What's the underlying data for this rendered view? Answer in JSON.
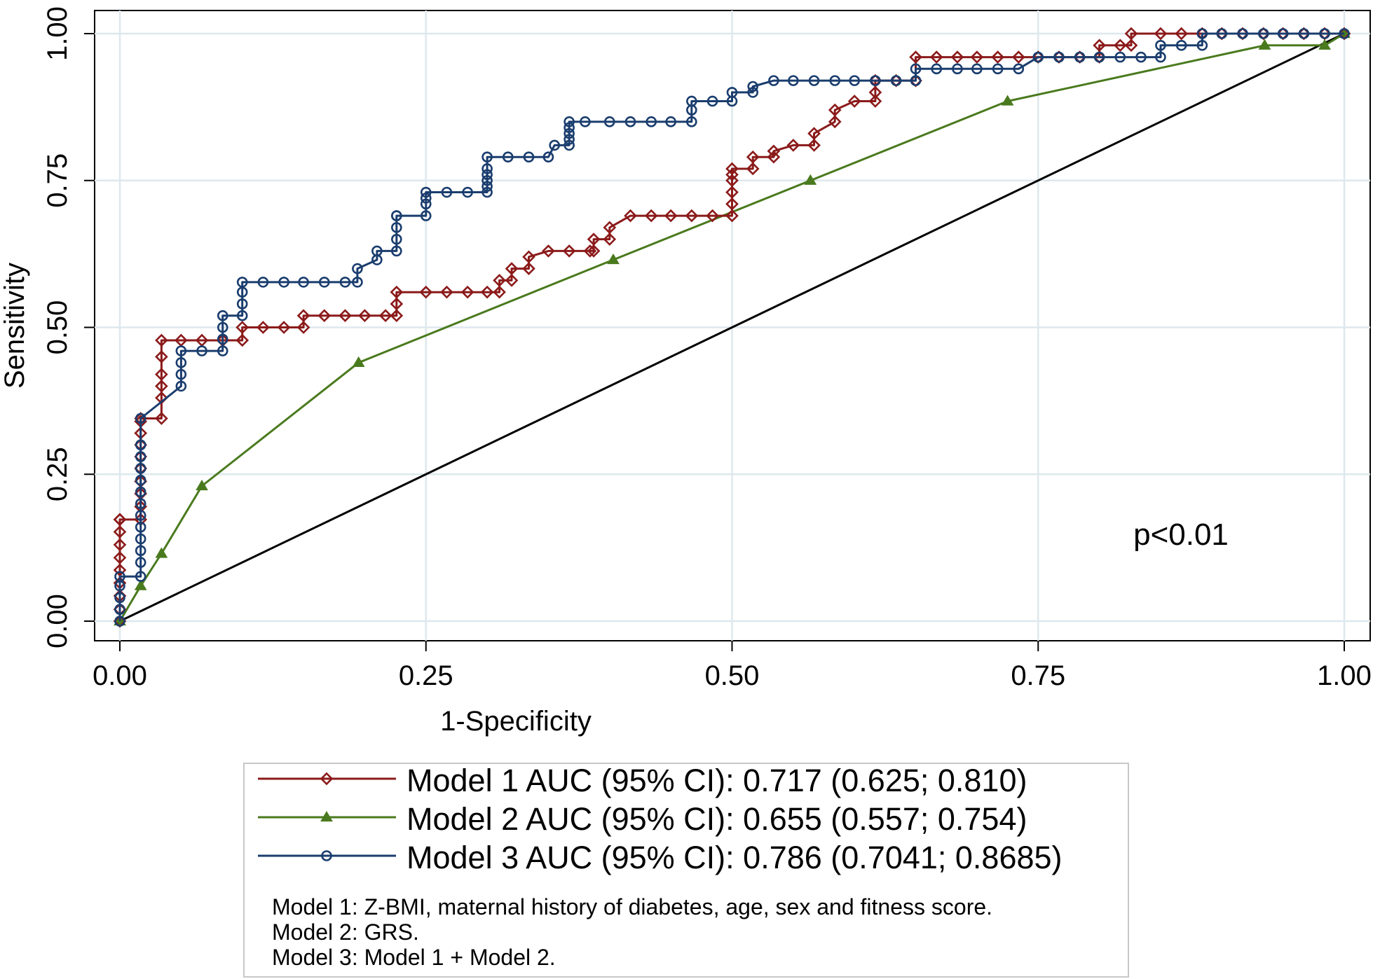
{
  "chart_data": {
    "type": "line",
    "xlabel": "1-Specificity",
    "ylabel": "Sensitivity",
    "xlim": [
      0,
      1
    ],
    "ylim": [
      0,
      1
    ],
    "xticks": [
      "0.00",
      "0.25",
      "0.50",
      "0.75",
      "1.00"
    ],
    "yticks": [
      "0.00",
      "0.25",
      "0.50",
      "0.75",
      "1.00"
    ],
    "grid": true,
    "annotation": "p<0.01",
    "colors": {
      "model1": "#8b1a1a",
      "model2": "#4a7a1e",
      "model3": "#1a3d6e",
      "reference": "#000000",
      "grid": "#dde8ee"
    },
    "series": [
      {
        "name": "Model 1 AUC (95% CI): 0.717 (0.625; 0.810)",
        "marker": "diamond",
        "x": [
          0,
          0,
          0,
          0,
          0,
          0,
          0,
          0,
          0,
          0,
          0.017,
          0.017,
          0.017,
          0.017,
          0.017,
          0.017,
          0.017,
          0.017,
          0.017,
          0.017,
          0.034,
          0.034,
          0.034,
          0.034,
          0.034,
          0.034,
          0.05,
          0.067,
          0.084,
          0.1,
          0.1,
          0.117,
          0.134,
          0.15,
          0.15,
          0.167,
          0.184,
          0.2,
          0.217,
          0.226,
          0.226,
          0.226,
          0.25,
          0.267,
          0.284,
          0.3,
          0.31,
          0.31,
          0.32,
          0.32,
          0.334,
          0.334,
          0.35,
          0.367,
          0.384,
          0.387,
          0.387,
          0.4,
          0.4,
          0.417,
          0.434,
          0.45,
          0.467,
          0.484,
          0.5,
          0.5,
          0.5,
          0.5,
          0.5,
          0.5,
          0.517,
          0.517,
          0.534,
          0.534,
          0.55,
          0.567,
          0.567,
          0.584,
          0.584,
          0.6,
          0.617,
          0.617,
          0.617,
          0.634,
          0.65,
          0.65,
          0.667,
          0.684,
          0.7,
          0.717,
          0.734,
          0.75,
          0.767,
          0.784,
          0.8,
          0.8,
          0.817,
          0.826,
          0.826,
          0.85,
          0.867,
          0.884,
          0.9,
          0.917,
          0.934,
          0.95,
          0.967,
          0.984,
          1
        ],
        "y": [
          0,
          0.02,
          0.043,
          0.065,
          0.087,
          0.108,
          0.13,
          0.152,
          0.173,
          0.173,
          0.173,
          0.195,
          0.217,
          0.238,
          0.26,
          0.28,
          0.3,
          0.32,
          0.34,
          0.345,
          0.345,
          0.38,
          0.4,
          0.42,
          0.45,
          0.478,
          0.478,
          0.478,
          0.478,
          0.478,
          0.5,
          0.5,
          0.5,
          0.5,
          0.52,
          0.52,
          0.52,
          0.52,
          0.52,
          0.52,
          0.54,
          0.56,
          0.56,
          0.56,
          0.56,
          0.56,
          0.56,
          0.58,
          0.58,
          0.6,
          0.6,
          0.62,
          0.63,
          0.63,
          0.63,
          0.63,
          0.65,
          0.65,
          0.67,
          0.69,
          0.69,
          0.69,
          0.69,
          0.69,
          0.69,
          0.71,
          0.73,
          0.75,
          0.76,
          0.77,
          0.77,
          0.79,
          0.79,
          0.8,
          0.81,
          0.81,
          0.83,
          0.85,
          0.87,
          0.885,
          0.885,
          0.9,
          0.92,
          0.92,
          0.92,
          0.96,
          0.96,
          0.96,
          0.96,
          0.96,
          0.96,
          0.96,
          0.96,
          0.96,
          0.96,
          0.98,
          0.98,
          0.98,
          1,
          1,
          1,
          1,
          1,
          1,
          1,
          1,
          1,
          1,
          1
        ]
      },
      {
        "name": "Model 2 AUC (95% CI): 0.655 (0.557; 0.754)",
        "marker": "triangle",
        "x": [
          0,
          0.017,
          0.034,
          0.067,
          0.195,
          0.403,
          0.564,
          0.725,
          0.935,
          0.984,
          1
        ],
        "y": [
          0,
          0.06,
          0.115,
          0.23,
          0.44,
          0.615,
          0.75,
          0.885,
          0.98,
          0.98,
          1
        ]
      },
      {
        "name": "Model 3 AUC (95% CI): 0.786 (0.7041; 0.8685)",
        "marker": "circle",
        "x": [
          0,
          0,
          0,
          0,
          0,
          0.017,
          0.017,
          0.017,
          0.017,
          0.017,
          0.017,
          0.017,
          0.017,
          0.017,
          0.017,
          0.017,
          0.017,
          0.017,
          0.05,
          0.05,
          0.05,
          0.05,
          0.067,
          0.084,
          0.084,
          0.084,
          0.084,
          0.1,
          0.1,
          0.1,
          0.1,
          0.117,
          0.134,
          0.15,
          0.167,
          0.184,
          0.194,
          0.194,
          0.21,
          0.21,
          0.226,
          0.226,
          0.226,
          0.226,
          0.226,
          0.25,
          0.25,
          0.25,
          0.25,
          0.267,
          0.284,
          0.3,
          0.3,
          0.3,
          0.3,
          0.3,
          0.3,
          0.317,
          0.334,
          0.35,
          0.355,
          0.367,
          0.367,
          0.367,
          0.367,
          0.367,
          0.38,
          0.4,
          0.417,
          0.434,
          0.45,
          0.467,
          0.467,
          0.467,
          0.484,
          0.5,
          0.5,
          0.517,
          0.517,
          0.534,
          0.55,
          0.567,
          0.584,
          0.6,
          0.617,
          0.634,
          0.65,
          0.65,
          0.667,
          0.684,
          0.7,
          0.717,
          0.734,
          0.75,
          0.767,
          0.784,
          0.8,
          0.817,
          0.834,
          0.85,
          0.85,
          0.867,
          0.884,
          0.884,
          0.9,
          0.917,
          0.934,
          0.95,
          0.967,
          0.984,
          1
        ],
        "y": [
          0,
          0.02,
          0.04,
          0.06,
          0.076,
          0.076,
          0.1,
          0.12,
          0.14,
          0.16,
          0.18,
          0.2,
          0.22,
          0.24,
          0.26,
          0.28,
          0.3,
          0.345,
          0.4,
          0.42,
          0.44,
          0.46,
          0.46,
          0.46,
          0.48,
          0.5,
          0.52,
          0.52,
          0.54,
          0.56,
          0.577,
          0.577,
          0.577,
          0.577,
          0.577,
          0.577,
          0.577,
          0.6,
          0.615,
          0.63,
          0.63,
          0.65,
          0.67,
          0.69,
          0.69,
          0.69,
          0.71,
          0.72,
          0.73,
          0.73,
          0.73,
          0.73,
          0.74,
          0.75,
          0.76,
          0.77,
          0.79,
          0.79,
          0.79,
          0.79,
          0.81,
          0.81,
          0.82,
          0.83,
          0.84,
          0.85,
          0.85,
          0.85,
          0.85,
          0.85,
          0.85,
          0.85,
          0.87,
          0.885,
          0.885,
          0.885,
          0.9,
          0.9,
          0.91,
          0.92,
          0.92,
          0.92,
          0.92,
          0.92,
          0.92,
          0.92,
          0.92,
          0.94,
          0.94,
          0.94,
          0.94,
          0.94,
          0.94,
          0.96,
          0.96,
          0.96,
          0.96,
          0.96,
          0.96,
          0.96,
          0.98,
          0.98,
          0.98,
          1,
          1,
          1,
          1,
          1,
          1,
          1,
          1
        ]
      },
      {
        "name": "",
        "marker": "none",
        "x": [
          0,
          1
        ],
        "y": [
          0,
          1
        ]
      }
    ],
    "legend_notes": [
      "Model 1: Z-BMI, maternal history of diabetes, age, sex and fitness score.",
      "Model 2: GRS.",
      "Model 3: Model 1 + Model 2."
    ]
  }
}
